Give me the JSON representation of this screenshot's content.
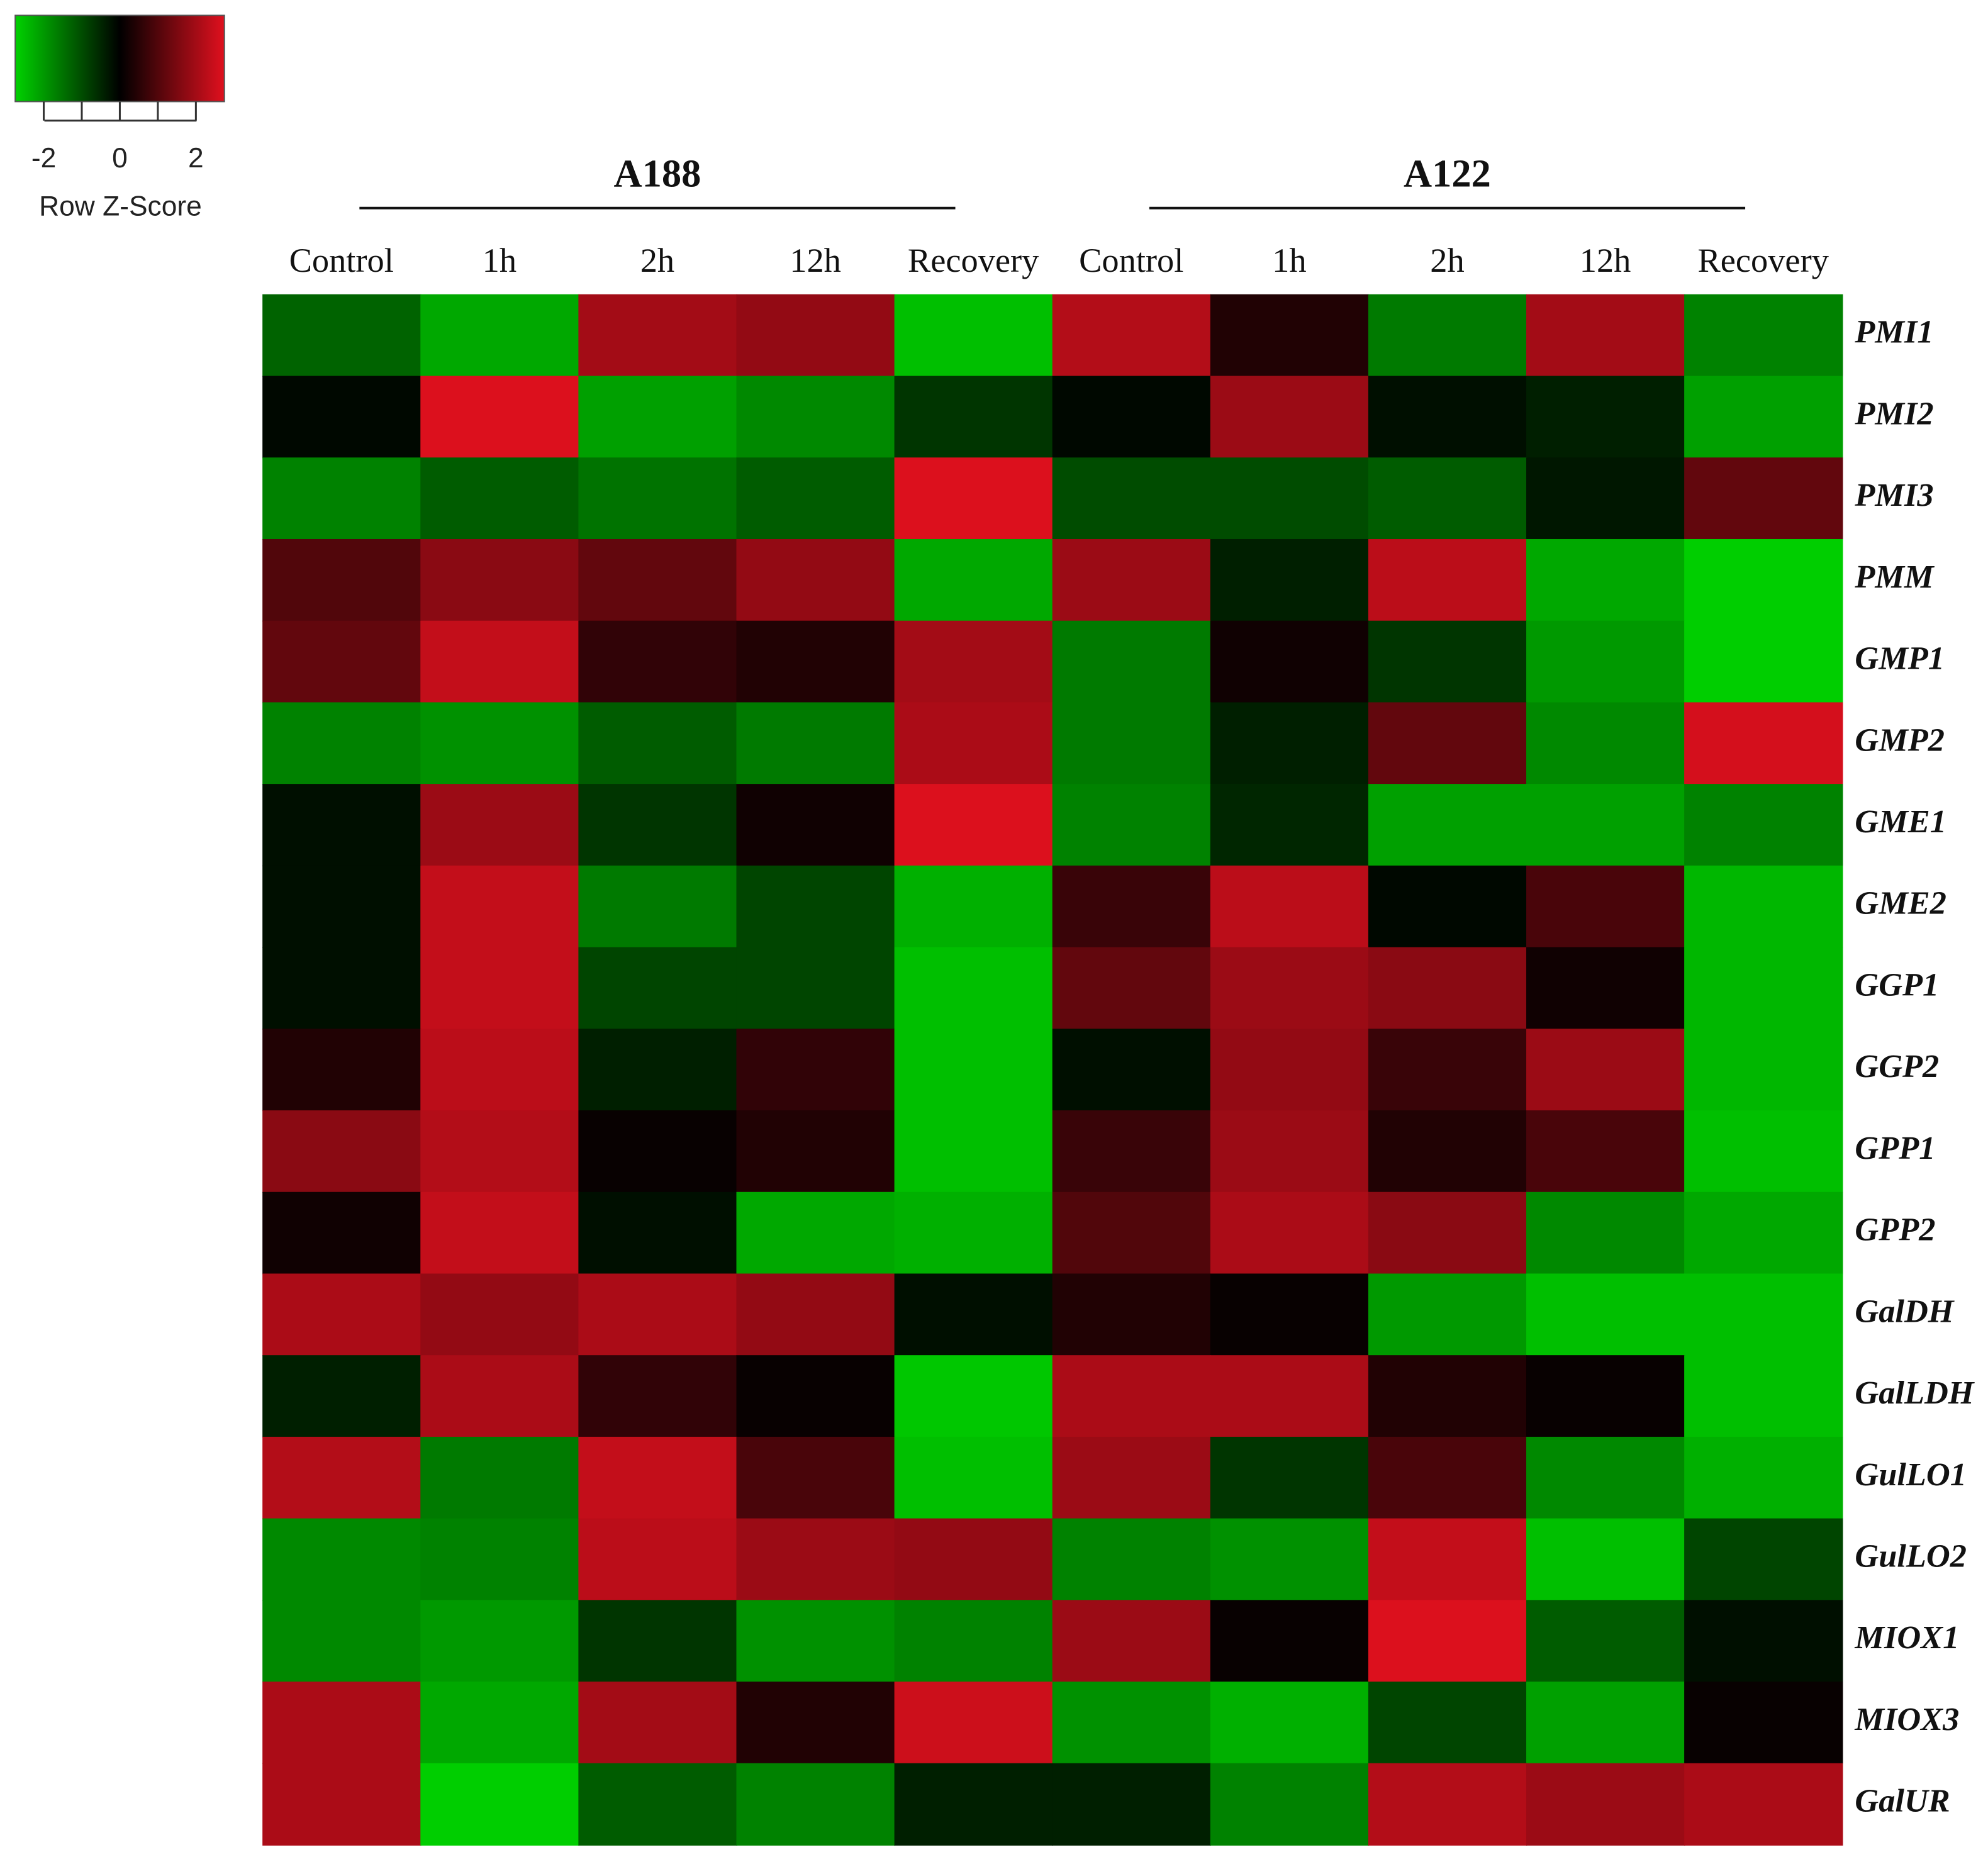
{
  "chart_data": {
    "type": "heatmap",
    "legend_title": "Row Z-Score",
    "zlim": [
      -2.75,
      2.75
    ],
    "zticks": [
      -2,
      0,
      2
    ],
    "zminor": [
      -1,
      1
    ],
    "colors": {
      "low": "#00d200",
      "mid": "#000000",
      "high": "#e0101e"
    },
    "groups": [
      {
        "name": "A188",
        "span": 5
      },
      {
        "name": "A122",
        "span": 5
      }
    ],
    "categories": [
      "Control",
      "1h",
      "2h",
      "12h",
      "Recovery",
      "Control",
      "1h",
      "2h",
      "12h",
      "Recovery"
    ],
    "rows": [
      "PMI1",
      "PMI2",
      "PMI3",
      "PMM",
      "GMP1",
      "GMP2",
      "GME1",
      "GME2",
      "GGP1",
      "GGP2",
      "GPP1",
      "GPP2",
      "GalDH",
      "GalLDH",
      "GulLO1",
      "GulLO2",
      "MIOX1",
      "MIOX3",
      "GalUR"
    ],
    "values": [
      [
        -1.3,
        -2.2,
        2.0,
        1.8,
        -2.5,
        2.2,
        0.4,
        -1.6,
        2.0,
        -1.7
      ],
      [
        -0.1,
        2.7,
        -2.1,
        -1.8,
        -0.7,
        -0.1,
        1.9,
        -0.2,
        -0.4,
        -2.1
      ],
      [
        -1.7,
        -1.2,
        -1.5,
        -1.2,
        2.7,
        -1.0,
        -1.0,
        -1.2,
        -0.3,
        1.2
      ],
      [
        1.0,
        1.7,
        1.2,
        1.8,
        -2.2,
        1.9,
        -0.4,
        2.3,
        -2.2,
        -2.7
      ],
      [
        1.2,
        2.4,
        0.6,
        0.4,
        2.0,
        -1.6,
        0.2,
        -0.7,
        -2.0,
        -2.7
      ],
      [
        -1.7,
        -1.9,
        -1.2,
        -1.6,
        2.1,
        -1.6,
        -0.4,
        1.2,
        -1.8,
        2.6
      ],
      [
        -0.2,
        1.9,
        -0.7,
        0.2,
        2.7,
        -1.7,
        -0.5,
        -2.1,
        -2.1,
        -1.7
      ],
      [
        -0.2,
        2.4,
        -1.6,
        -0.9,
        -2.3,
        0.7,
        2.3,
        -0.1,
        0.9,
        -2.4
      ],
      [
        -0.2,
        2.4,
        -0.9,
        -0.9,
        -2.5,
        1.2,
        1.9,
        1.7,
        0.2,
        -2.4
      ],
      [
        0.4,
        2.3,
        -0.4,
        0.6,
        -2.5,
        -0.2,
        1.8,
        0.7,
        1.9,
        -2.4
      ],
      [
        1.7,
        2.2,
        0.1,
        0.4,
        -2.5,
        0.7,
        1.9,
        0.4,
        0.9,
        -2.5
      ],
      [
        0.2,
        2.4,
        -0.2,
        -2.2,
        -2.3,
        1.0,
        2.1,
        1.7,
        -1.8,
        -2.2
      ],
      [
        2.1,
        1.8,
        2.1,
        1.8,
        -0.2,
        0.4,
        0.1,
        -2.0,
        -2.5,
        -2.5
      ],
      [
        -0.4,
        2.1,
        0.6,
        0.1,
        -2.6,
        2.1,
        2.1,
        0.4,
        0.1,
        -2.5
      ],
      [
        2.2,
        -1.6,
        2.4,
        0.9,
        -2.5,
        1.9,
        -0.7,
        0.9,
        -1.8,
        -2.3
      ],
      [
        -1.8,
        -1.7,
        2.3,
        1.9,
        1.8,
        -1.7,
        -1.9,
        2.4,
        -2.5,
        -0.9
      ],
      [
        -1.8,
        -2.0,
        -0.7,
        -1.9,
        -1.7,
        1.9,
        0.1,
        2.7,
        -1.2,
        -0.2
      ],
      [
        2.1,
        -2.2,
        2.0,
        0.4,
        2.5,
        -1.9,
        -2.3,
        -0.9,
        -2.1,
        0.1
      ],
      [
        2.1,
        -2.7,
        -1.2,
        -1.7,
        -0.4,
        -0.4,
        -1.7,
        2.2,
        1.9,
        2.1
      ]
    ]
  }
}
